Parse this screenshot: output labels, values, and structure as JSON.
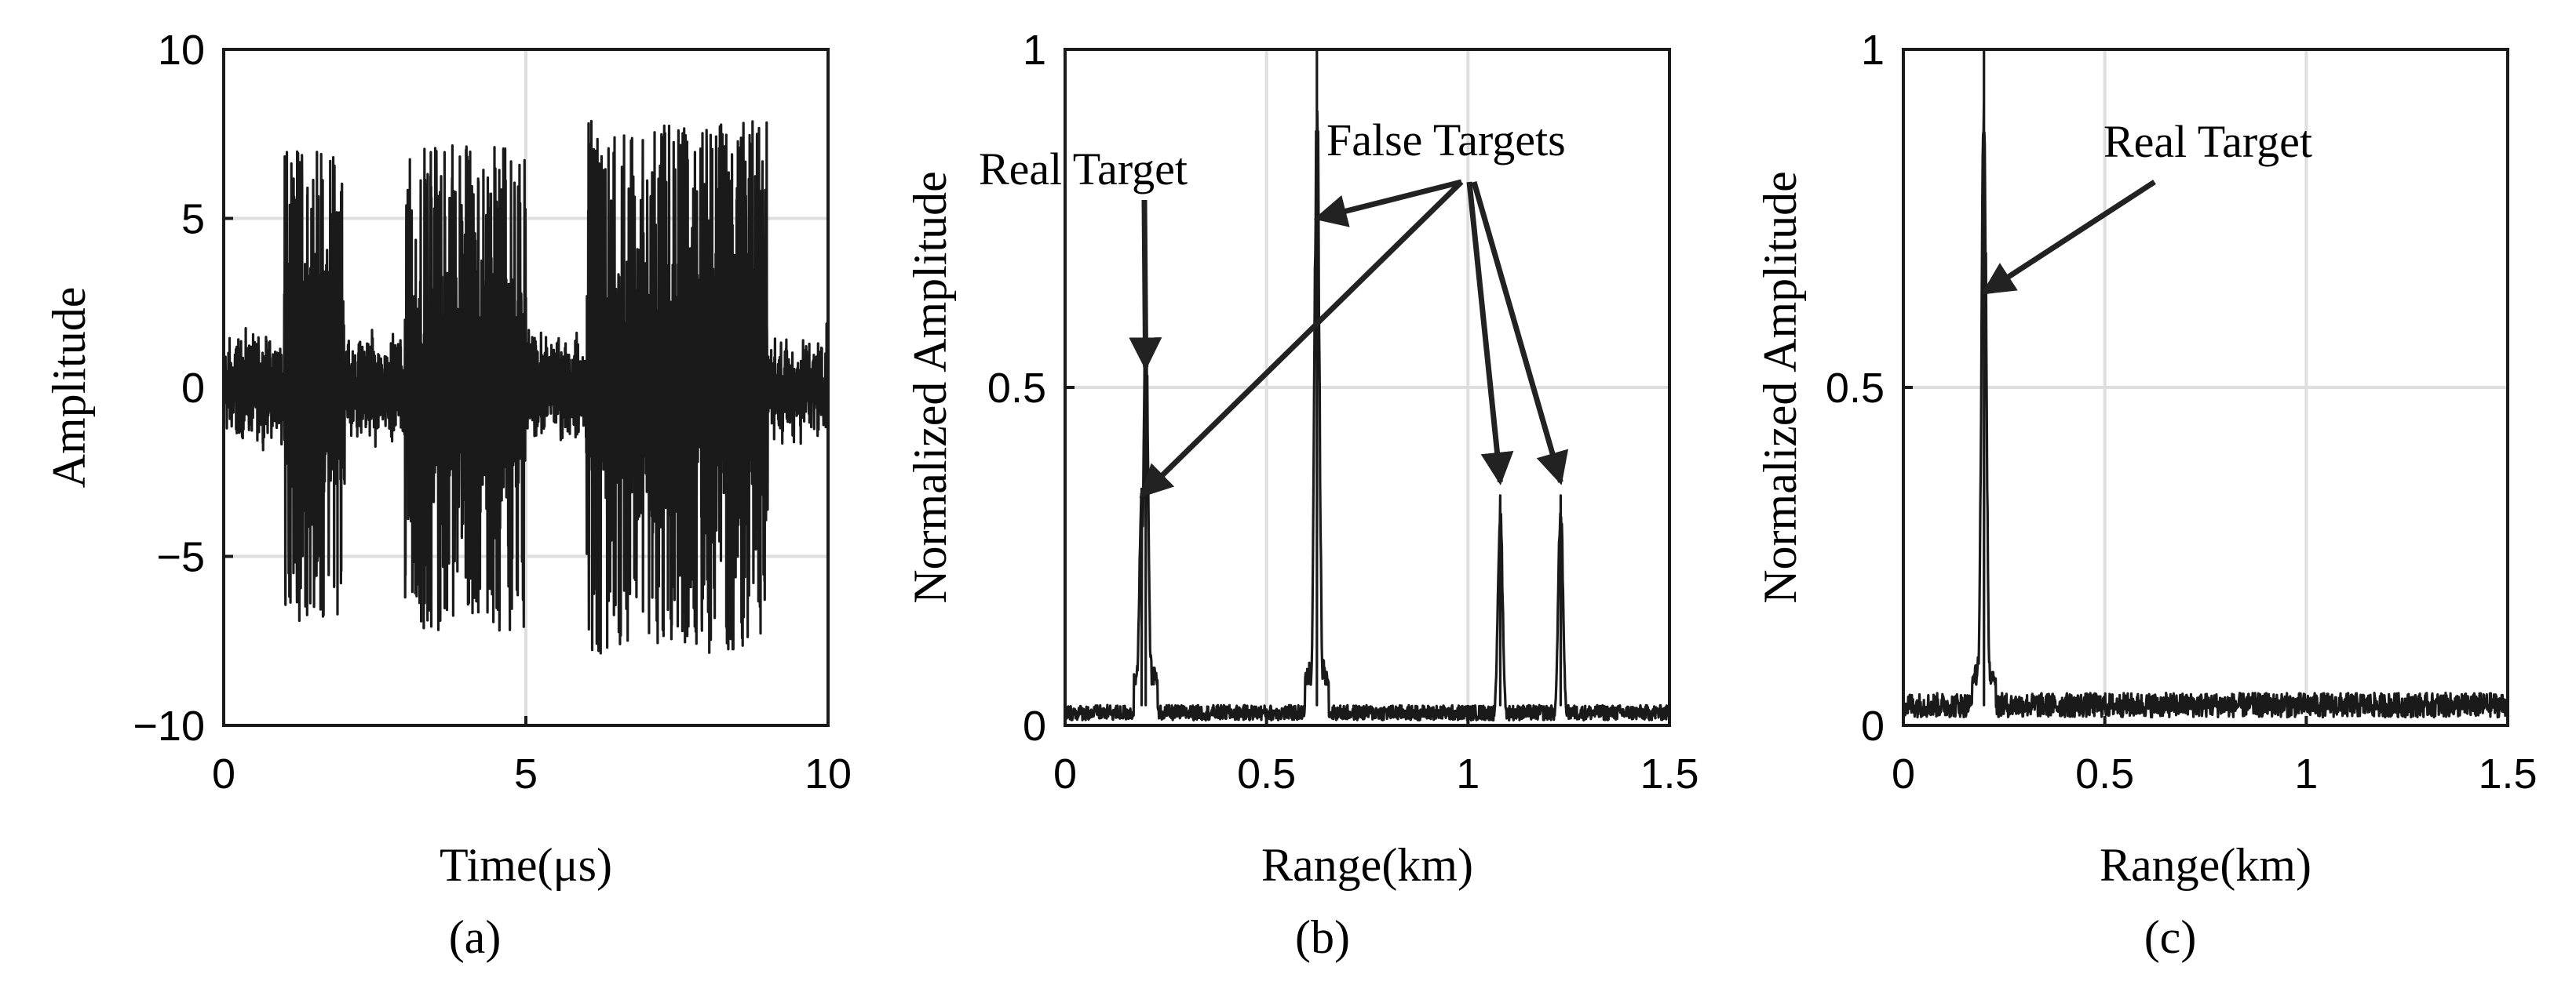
{
  "chart_data": [
    {
      "type": "line",
      "panel_label": "(a)",
      "xlabel": "Time(μs)",
      "ylabel": "Amplitude",
      "xlim": [
        0,
        10
      ],
      "ylim": [
        -10,
        10
      ],
      "xticks": [
        "0",
        "5",
        "10"
      ],
      "yticks": [
        "-10",
        "-5",
        "0",
        "5",
        "10"
      ],
      "grid": true,
      "noise_floor_amplitude": 2.3,
      "pulses": [
        {
          "start": 1.0,
          "end": 2.0,
          "amplitude": 7.0
        },
        {
          "start": 3.0,
          "end": 5.0,
          "amplitude": 7.2
        },
        {
          "start": 6.0,
          "end": 9.0,
          "amplitude": 7.9
        }
      ],
      "annotations": []
    },
    {
      "type": "line",
      "panel_label": "(b)",
      "xlabel": "Range(km)",
      "ylabel": "Normalized Amplitude",
      "xlim": [
        0,
        1.5
      ],
      "ylim": [
        0,
        1
      ],
      "xticks": [
        "0",
        "0.5",
        "1",
        "1.5"
      ],
      "yticks": [
        "0",
        "0.5",
        "1"
      ],
      "grid": true,
      "noise_floor_amplitude": 0.025,
      "peaks": [
        {
          "x": 0.19,
          "y": 0.35
        },
        {
          "x": 0.2,
          "y": 0.67
        },
        {
          "x": 0.625,
          "y": 1.0
        },
        {
          "x": 1.08,
          "y": 0.34
        },
        {
          "x": 1.23,
          "y": 0.34
        }
      ],
      "annotations": [
        {
          "text": "Real Target",
          "points_to": [
            {
              "x": 0.2,
              "y": 0.53
            }
          ]
        },
        {
          "text": "False Targets",
          "points_to": [
            {
              "x": 0.625,
              "y": 0.75
            },
            {
              "x": 0.19,
              "y": 0.34
            },
            {
              "x": 1.08,
              "y": 0.36
            },
            {
              "x": 1.23,
              "y": 0.36
            }
          ]
        }
      ]
    },
    {
      "type": "line",
      "panel_label": "(c)",
      "xlabel": "Range(km)",
      "ylabel": "Normalized Amplitude",
      "xlim": [
        0,
        1.5
      ],
      "ylim": [
        0,
        1
      ],
      "xticks": [
        "0",
        "0.5",
        "1",
        "1.5"
      ],
      "yticks": [
        "0",
        "0.5",
        "1"
      ],
      "grid": true,
      "noise_floor_amplitude": 0.04,
      "peaks": [
        {
          "x": 0.2,
          "y": 1.0
        }
      ],
      "annotations": [
        {
          "text": "Real Target",
          "points_to": [
            {
              "x": 0.2,
              "y": 0.64
            }
          ]
        }
      ]
    }
  ]
}
